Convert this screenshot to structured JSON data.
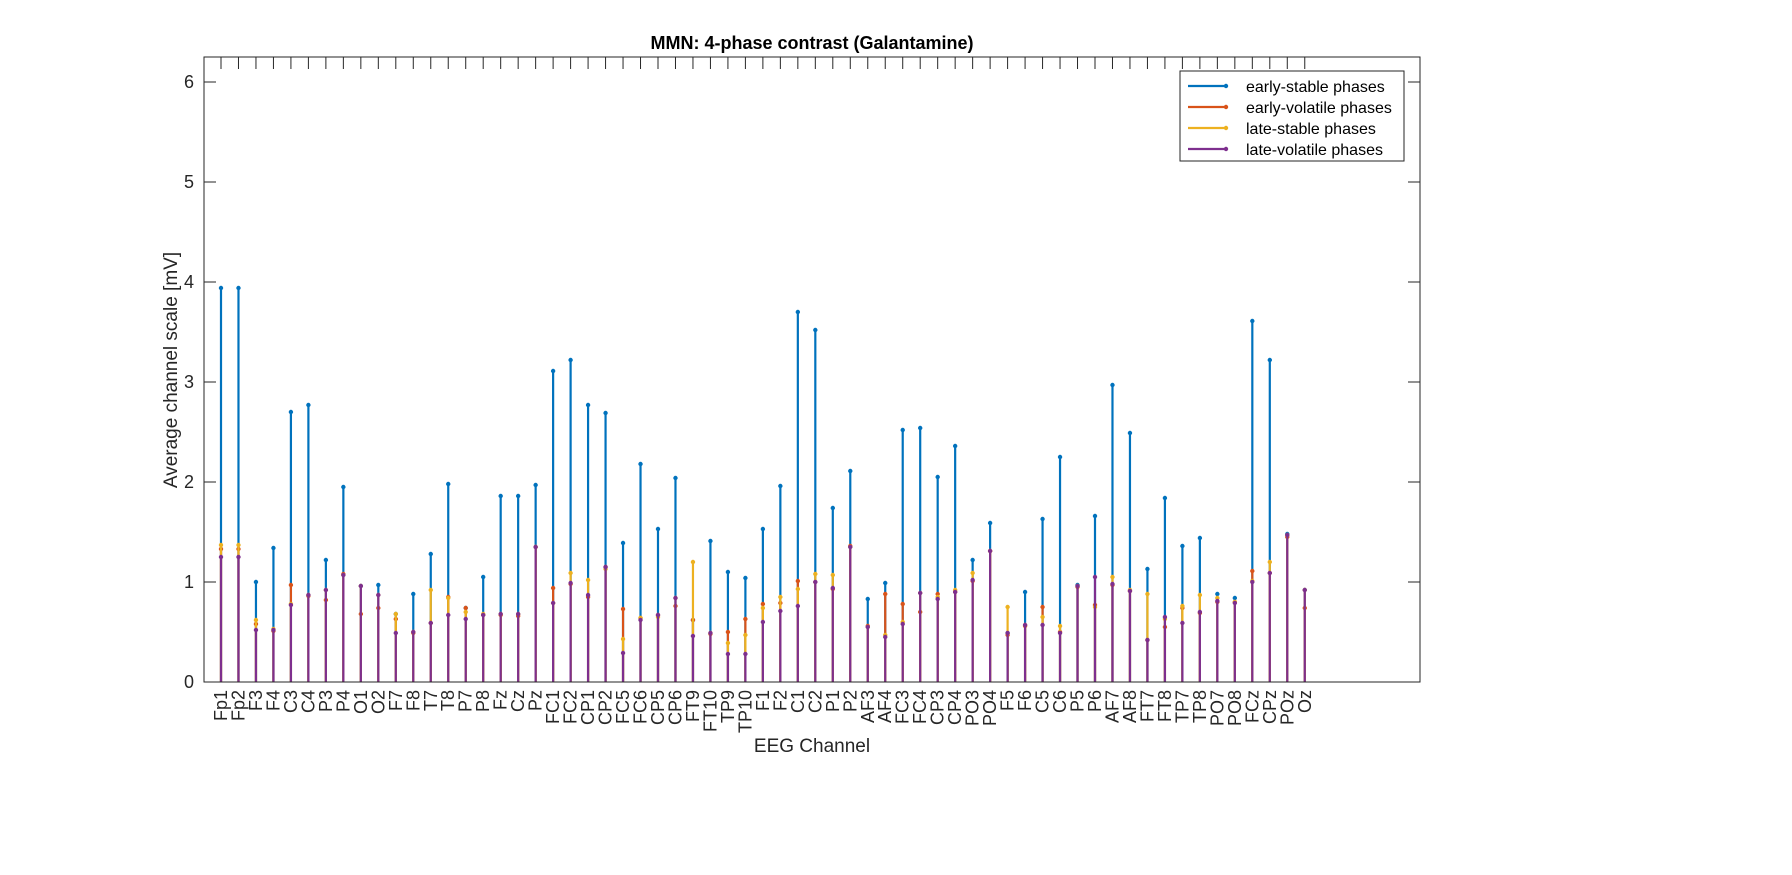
{
  "chart_data": {
    "type": "line",
    "title": "MMN: 4-phase contrast (Galantamine)",
    "xlabel": "EEG Channel",
    "ylabel": "Average channel scale [mV]",
    "ylim": [
      0,
      6.25
    ],
    "yticks": [
      0,
      1,
      2,
      3,
      4,
      5,
      6
    ],
    "grid": false,
    "legend_position": "top-right",
    "categories": [
      "Fp1",
      "Fp2",
      "F3",
      "F4",
      "C3",
      "C4",
      "P3",
      "P4",
      "O1",
      "O2",
      "F7",
      "F8",
      "T7",
      "T8",
      "P7",
      "P8",
      "Fz",
      "Cz",
      "Pz",
      "FC1",
      "FC2",
      "CP1",
      "CP2",
      "FC5",
      "FC6",
      "CP5",
      "CP6",
      "FT9",
      "FT10",
      "TP9",
      "TP10",
      "F1",
      "F2",
      "C1",
      "C2",
      "P1",
      "P2",
      "AF3",
      "AF4",
      "FC3",
      "FC4",
      "CP3",
      "CP4",
      "PO3",
      "PO4",
      "F5",
      "F6",
      "C5",
      "C6",
      "P5",
      "P6",
      "AF7",
      "AF8",
      "FT7",
      "FT8",
      "TP7",
      "TP8",
      "PO7",
      "PO8",
      "FCz",
      "CPz",
      "POz",
      "Oz"
    ],
    "series": [
      {
        "name": "early-stable phases",
        "color": "#0072BD",
        "values": [
          3.94,
          3.94,
          1.0,
          1.34,
          2.7,
          2.77,
          1.22,
          1.95,
          0.96,
          0.97,
          0.68,
          0.88,
          1.28,
          1.98,
          0.74,
          1.05,
          1.86,
          1.86,
          1.97,
          3.11,
          3.22,
          2.77,
          2.69,
          1.39,
          2.18,
          1.53,
          2.04,
          0.62,
          1.41,
          1.1,
          1.04,
          1.53,
          1.96,
          3.7,
          3.52,
          1.74,
          2.11,
          0.83,
          0.99,
          2.52,
          2.54,
          2.05,
          2.36,
          1.22,
          1.59,
          0.49,
          0.9,
          1.63,
          2.25,
          0.97,
          1.66,
          2.97,
          2.49,
          1.13,
          1.84,
          1.36,
          1.44,
          0.88,
          0.84,
          3.61,
          3.22,
          1.48,
          0.92
        ]
      },
      {
        "name": "early-volatile phases",
        "color": "#D95319",
        "values": [
          1.33,
          1.33,
          0.58,
          0.51,
          0.97,
          0.86,
          0.82,
          1.08,
          0.68,
          0.74,
          0.63,
          0.49,
          0.59,
          0.85,
          0.74,
          0.67,
          0.67,
          0.66,
          1.35,
          0.94,
          0.98,
          0.85,
          1.15,
          0.73,
          0.64,
          0.67,
          0.76,
          0.62,
          0.48,
          0.5,
          0.63,
          0.78,
          0.79,
          1.01,
          1.0,
          0.93,
          1.36,
          0.56,
          0.88,
          0.78,
          0.7,
          0.88,
          0.9,
          1.01,
          1.31,
          0.47,
          0.56,
          0.75,
          0.5,
          0.95,
          0.77,
          0.97,
          0.91,
          0.42,
          0.55,
          0.74,
          0.69,
          0.8,
          0.8,
          1.11,
          1.09,
          1.45,
          0.74
        ]
      },
      {
        "name": "late-stable phases",
        "color": "#EDB120",
        "values": [
          1.37,
          1.37,
          0.62,
          0.53,
          0.78,
          0.87,
          0.92,
          1.07,
          0.96,
          0.87,
          0.68,
          0.5,
          0.92,
          0.84,
          0.7,
          0.68,
          0.68,
          0.68,
          1.35,
          0.79,
          1.09,
          1.02,
          1.13,
          0.43,
          0.64,
          0.65,
          0.84,
          1.2,
          0.49,
          0.39,
          0.47,
          0.74,
          0.85,
          0.93,
          1.08,
          1.07,
          1.35,
          0.55,
          0.47,
          0.6,
          0.89,
          0.85,
          0.92,
          1.09,
          1.31,
          0.75,
          0.57,
          0.65,
          0.56,
          0.96,
          0.75,
          1.05,
          0.92,
          0.88,
          0.63,
          0.76,
          0.87,
          0.84,
          0.8,
          1.01,
          1.2,
          1.47,
          0.92
        ]
      },
      {
        "name": "late-volatile phases",
        "color": "#7E2F8E",
        "values": [
          1.25,
          1.25,
          0.52,
          0.52,
          0.77,
          0.87,
          0.92,
          1.07,
          0.96,
          0.87,
          0.49,
          0.5,
          0.59,
          0.67,
          0.63,
          0.67,
          0.68,
          0.68,
          1.35,
          0.79,
          0.99,
          0.87,
          1.15,
          0.29,
          0.62,
          0.67,
          0.84,
          0.46,
          0.49,
          0.28,
          0.28,
          0.6,
          0.71,
          0.76,
          1.0,
          0.94,
          1.35,
          0.55,
          0.45,
          0.58,
          0.89,
          0.83,
          0.9,
          1.02,
          1.31,
          0.49,
          0.57,
          0.57,
          0.49,
          0.96,
          1.05,
          0.98,
          0.91,
          0.42,
          0.65,
          0.59,
          0.7,
          0.81,
          0.79,
          1.0,
          1.09,
          1.47,
          0.92
        ]
      }
    ]
  }
}
